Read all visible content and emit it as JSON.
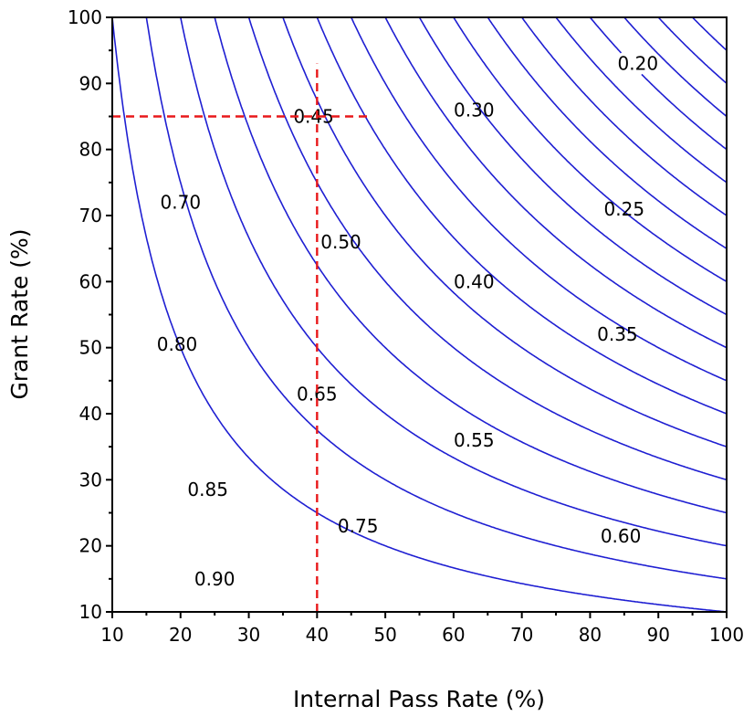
{
  "chart_data": {
    "type": "contour",
    "title": "",
    "xlabel": "Internal Pass Rate (%)",
    "ylabel": "Grant Rate (%)",
    "xlim": [
      10,
      100
    ],
    "ylim": [
      10,
      100
    ],
    "xticks": [
      "10",
      "20",
      "30",
      "40",
      "50",
      "60",
      "70",
      "80",
      "90",
      "100"
    ],
    "yticks": [
      "10",
      "20",
      "30",
      "40",
      "50",
      "60",
      "70",
      "80",
      "90",
      "100"
    ],
    "grid": false,
    "function": "z = 1 - (x/100) * (y/100)",
    "contour_levels": [
      {
        "level": 0.2,
        "label": "0.20",
        "label_at": [
          87,
          93
        ]
      },
      {
        "level": 0.25,
        "label": "0.25",
        "label_at": [
          85,
          71
        ]
      },
      {
        "level": 0.3,
        "label": "0.30",
        "label_at": [
          63,
          86
        ]
      },
      {
        "level": 0.35,
        "label": "0.35",
        "label_at": [
          84,
          52
        ]
      },
      {
        "level": 0.4,
        "label": "0.40",
        "label_at": [
          63,
          60
        ]
      },
      {
        "level": 0.45,
        "label": "0.45",
        "label_at": [
          39.5,
          85
        ]
      },
      {
        "level": 0.5,
        "label": "0.50",
        "label_at": [
          43.5,
          66
        ]
      },
      {
        "level": 0.55,
        "label": "0.55",
        "label_at": [
          63,
          36
        ]
      },
      {
        "level": 0.6,
        "label": "0.60",
        "label_at": [
          84.5,
          21.5
        ]
      },
      {
        "level": 0.65,
        "label": "0.65",
        "label_at": [
          40,
          43
        ]
      },
      {
        "level": 0.7,
        "label": "0.70",
        "label_at": [
          20,
          72
        ]
      },
      {
        "level": 0.75,
        "label": "0.75",
        "label_at": [
          46,
          23
        ]
      },
      {
        "level": 0.8,
        "label": "0.80",
        "label_at": [
          19.5,
          50.5
        ]
      },
      {
        "level": 0.85,
        "label": "0.85",
        "label_at": [
          24,
          28.5
        ]
      },
      {
        "level": 0.9,
        "label": "0.90",
        "label_at": [
          25,
          15
        ]
      }
    ],
    "extra_levels": [
      0.05,
      0.1,
      0.15
    ],
    "reference_lines": [
      {
        "orientation": "horizontal",
        "y": 85,
        "x_range": [
          10,
          48
        ],
        "color": "#e8191b",
        "style": "dashed"
      },
      {
        "orientation": "vertical",
        "x": 40,
        "y_range": [
          10,
          93
        ],
        "color": "#e8191b",
        "style": "dashed"
      }
    ],
    "line_color": "#1f1fd2"
  }
}
